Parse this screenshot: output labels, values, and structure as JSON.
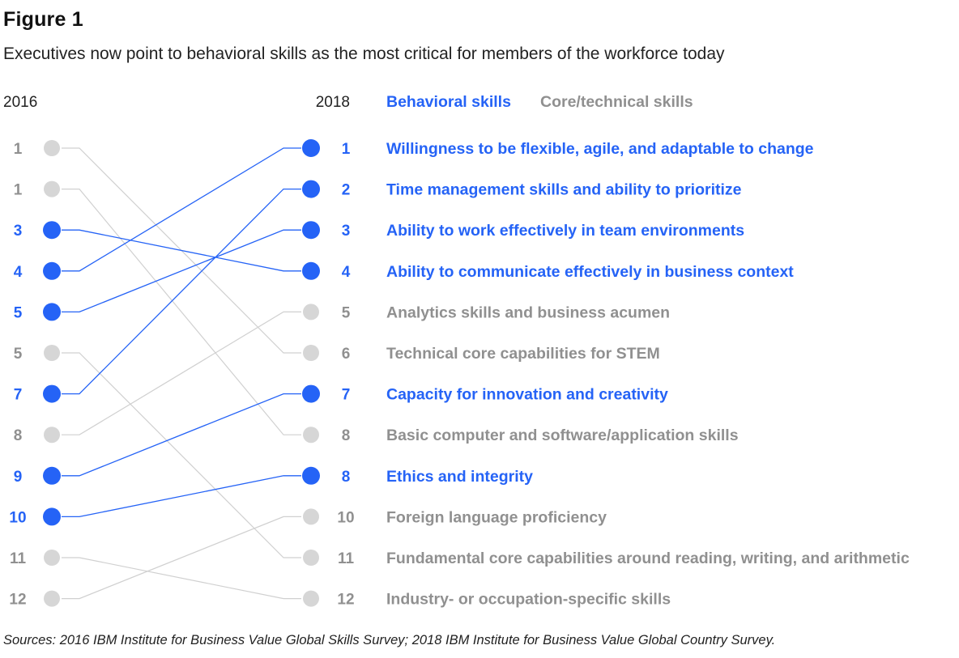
{
  "figure": {
    "label": "Figure 1",
    "subtitle": "Executives now point to behavioral skills as the most critical for members of the workforce today",
    "sources": "Sources: 2016 IBM Institute for Business Value Global Skills Survey; 2018 IBM Institute for Business Value Global Country Survey."
  },
  "colors": {
    "behavioral": "#2563f6",
    "core": "#909090",
    "dot_core": "#d6d6d6",
    "line_core": "#d0d0d0",
    "text_dark": "#222222"
  },
  "chart_data": {
    "type": "slope",
    "title": "Executives now point to behavioral skills as the most critical for members of the workforce today",
    "left_header": "2016",
    "right_header": "2018",
    "legend": [
      {
        "name": "Behavioral skills",
        "category": "behavioral"
      },
      {
        "name": "Core/technical skills",
        "category": "core"
      }
    ],
    "left_ranks": [
      {
        "rank": "1",
        "category": "core",
        "connects_to": 5
      },
      {
        "rank": "1",
        "category": "core",
        "connects_to": 7
      },
      {
        "rank": "3",
        "category": "behavioral",
        "connects_to": 3
      },
      {
        "rank": "4",
        "category": "behavioral",
        "connects_to": 0
      },
      {
        "rank": "5",
        "category": "behavioral",
        "connects_to": 2
      },
      {
        "rank": "5",
        "category": "core",
        "connects_to": 10
      },
      {
        "rank": "7",
        "category": "behavioral",
        "connects_to": 1
      },
      {
        "rank": "8",
        "category": "core",
        "connects_to": 4
      },
      {
        "rank": "9",
        "category": "behavioral",
        "connects_to": 6
      },
      {
        "rank": "10",
        "category": "behavioral",
        "connects_to": 8
      },
      {
        "rank": "11",
        "category": "core",
        "connects_to": 11
      },
      {
        "rank": "12",
        "category": "core",
        "connects_to": 9
      }
    ],
    "right_items": [
      {
        "rank": "1",
        "skill": "Willingness to be flexible, agile, and adaptable to change",
        "category": "behavioral"
      },
      {
        "rank": "2",
        "skill": "Time management skills and ability to prioritize",
        "category": "behavioral"
      },
      {
        "rank": "3",
        "skill": "Ability to work effectively in team environments",
        "category": "behavioral"
      },
      {
        "rank": "4",
        "skill": "Ability to communicate effectively in business context",
        "category": "behavioral"
      },
      {
        "rank": "5",
        "skill": "Analytics skills and business acumen",
        "category": "core"
      },
      {
        "rank": "6",
        "skill": "Technical core capabilities for STEM",
        "category": "core"
      },
      {
        "rank": "7",
        "skill": "Capacity for innovation and creativity",
        "category": "behavioral"
      },
      {
        "rank": "8",
        "skill": "Basic computer and software/application skills",
        "category": "core"
      },
      {
        "rank": "8",
        "skill": "Ethics and integrity",
        "category": "behavioral"
      },
      {
        "rank": "10",
        "skill": "Foreign language proficiency",
        "category": "core"
      },
      {
        "rank": "11",
        "skill": "Fundamental core capabilities around reading, writing, and arithmetic",
        "category": "core"
      },
      {
        "rank": "12",
        "skill": "Industry- or occupation-specific skills",
        "category": "core"
      }
    ]
  }
}
